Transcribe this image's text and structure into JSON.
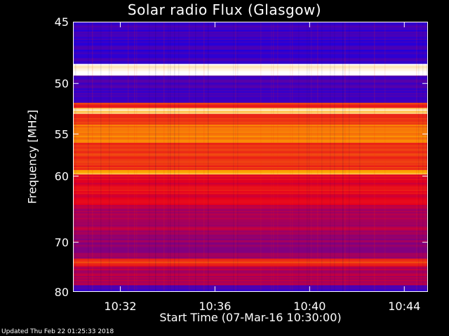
{
  "title": "Solar radio Flux (Glasgow)",
  "updated": "Updated Thu Feb 22 01:25:33 2018",
  "chart_data": {
    "type": "heatmap",
    "title": "Solar radio Flux (Glasgow)",
    "xlabel": "Start Time (07-Mar-16 10:30:00)",
    "ylabel": "Frequency [MHz]",
    "x_ticks": [
      "10:32",
      "10:36",
      "10:40",
      "10:44"
    ],
    "x_tick_minutes": [
      2,
      6,
      10,
      14
    ],
    "xlim_minutes": [
      0,
      15
    ],
    "y_ticks": [
      45,
      50,
      55,
      60,
      70,
      80
    ],
    "ylim": [
      45,
      80
    ],
    "y_scale": "reciprocal",
    "colormap": "blue-red-yellow-white",
    "colors": {
      "low": "#0000ff",
      "mid": "#c00000",
      "high": "#ffffff",
      "background": "#000000"
    },
    "intensity_bands": [
      {
        "freq_range": [
          45,
          48.3
        ],
        "level": 0.12
      },
      {
        "freq_range": [
          48.3,
          49.3
        ],
        "level": 1.0
      },
      {
        "freq_range": [
          49.3,
          51.8
        ],
        "level": 0.15
      },
      {
        "freq_range": [
          51.8,
          52.3
        ],
        "level": 0.6
      },
      {
        "freq_range": [
          52.3,
          52.9
        ],
        "level": 0.95
      },
      {
        "freq_range": [
          52.9,
          54
        ],
        "level": 0.6
      },
      {
        "freq_range": [
          54,
          56
        ],
        "level": 0.75
      },
      {
        "freq_range": [
          56,
          59.2
        ],
        "level": 0.6
      },
      {
        "freq_range": [
          59.2,
          59.8
        ],
        "level": 0.85
      },
      {
        "freq_range": [
          59.8,
          64
        ],
        "level": 0.5
      },
      {
        "freq_range": [
          64,
          68
        ],
        "level": 0.38
      },
      {
        "freq_range": [
          68,
          73
        ],
        "level": 0.33
      },
      {
        "freq_range": [
          73,
          74.5
        ],
        "level": 0.6
      },
      {
        "freq_range": [
          74.5,
          78.5
        ],
        "level": 0.38
      },
      {
        "freq_range": [
          78.5,
          80
        ],
        "level": 0.15
      }
    ]
  }
}
